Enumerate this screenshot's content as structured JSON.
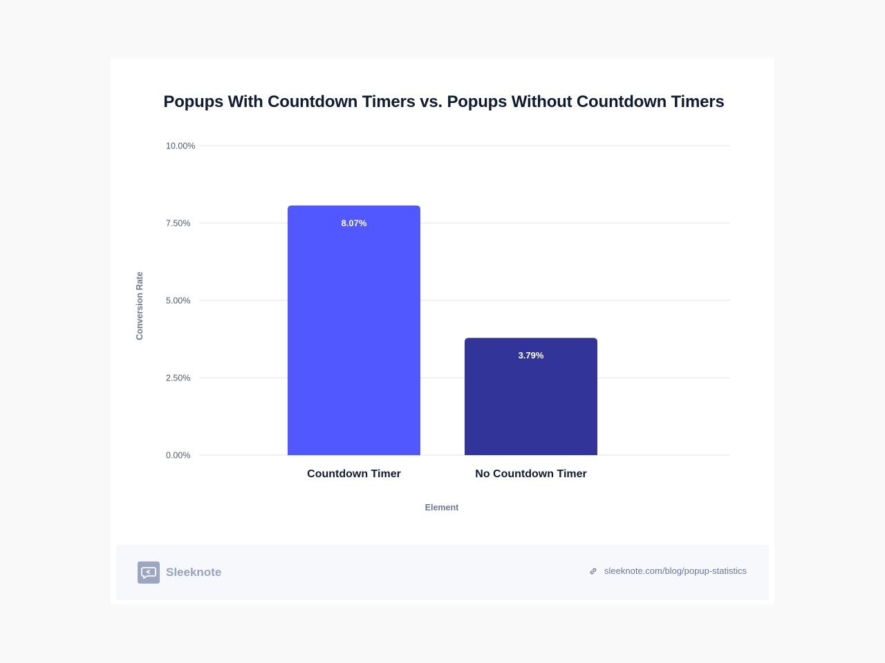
{
  "chart_data": {
    "type": "bar",
    "title": "Popups With Countdown Timers vs. Popups Without Countdown Timers",
    "xlabel": "Element",
    "ylabel": "Conversion Rate",
    "categories": [
      "Countdown Timer",
      "No Countdown Timer"
    ],
    "values": [
      8.07,
      3.79
    ],
    "value_labels": [
      "8.07%",
      "3.79%"
    ],
    "ylim": [
      0,
      10
    ],
    "yticks": [
      0,
      2.5,
      5,
      7.5,
      10
    ],
    "ytick_labels": [
      "0.00%",
      "2.50%",
      "5.00%",
      "7.50%",
      "10.00%"
    ],
    "bar_colors": [
      "#5258ff",
      "#33349a"
    ],
    "grid": true,
    "legend": "none"
  },
  "footer": {
    "brand_name": "Sleeknote",
    "source_url": "sleeknote.com/blog/popup-statistics",
    "brand_icon": "sleeknote-logo-icon",
    "link_icon": "link-icon",
    "brand_color": "#9aa6c2"
  }
}
